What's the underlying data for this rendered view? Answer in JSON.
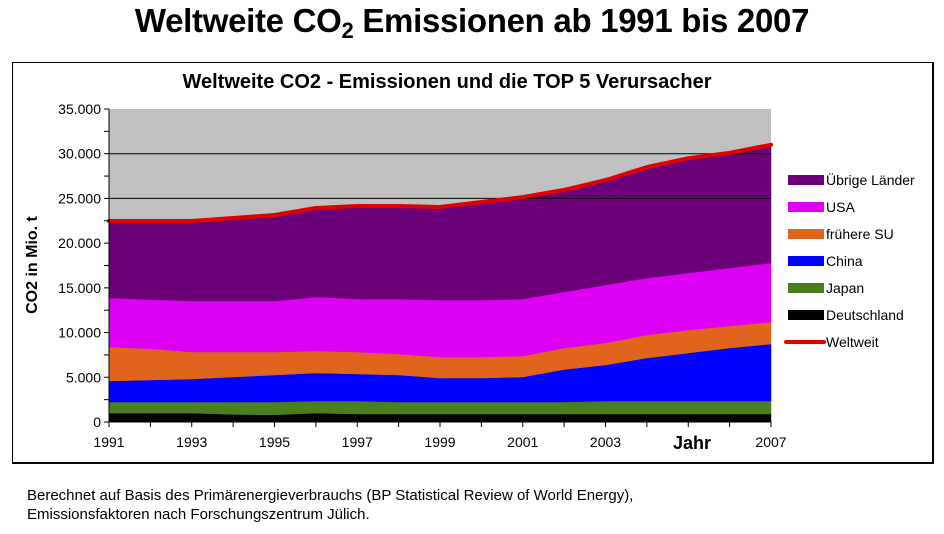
{
  "page": {
    "title_pre": "Weltweite CO",
    "title_sub": "2",
    "title_post": " Emissionen ab 1991 bis 2007",
    "footnote_line1": "Berechnet auf Basis des Primärenergieverbrauchs (BP Statistical Review of World Energy),",
    "footnote_line2": "Emissionsfaktoren nach Forschungszentrum Jülich."
  },
  "chart_data": {
    "type": "area",
    "stacked": true,
    "title": "Weltweite CO2 - Emissionen und die TOP 5 Verursacher",
    "xlabel": "Jahr",
    "ylabel": "CO2 in Mio. t",
    "x": [
      1991,
      1992,
      1993,
      1994,
      1995,
      1996,
      1997,
      1998,
      1999,
      2000,
      2001,
      2002,
      2003,
      2004,
      2005,
      2006,
      2007
    ],
    "x_tick_labels": [
      "1991",
      "1993",
      "1995",
      "1997",
      "1999",
      "2001",
      "2003",
      "2007"
    ],
    "ylim": [
      0,
      35000
    ],
    "y_tick_labels": [
      "0",
      "5.000",
      "10.000",
      "15.000",
      "20.000",
      "25.000",
      "30.000",
      "35.000"
    ],
    "y_ticks": [
      0,
      5000,
      10000,
      15000,
      20000,
      25000,
      30000,
      35000
    ],
    "grid": "horizontal major gridlines at 25.000 and 30.000 (above data)",
    "plot_background": "#c0c0c0",
    "legend_position": "right",
    "series": [
      {
        "name": "Deutschland",
        "color": "#000000",
        "values": [
          1000,
          1000,
          1000,
          850,
          800,
          1000,
          900,
          900,
          900,
          900,
          900,
          900,
          900,
          900,
          900,
          900,
          900
        ]
      },
      {
        "name": "Japan",
        "color": "#4a7f1f",
        "values": [
          1240,
          1240,
          1240,
          1390,
          1440,
          1350,
          1450,
          1340,
          1340,
          1340,
          1340,
          1340,
          1450,
          1450,
          1450,
          1450,
          1450
        ]
      },
      {
        "name": "China",
        "color": "#0000ff",
        "values": [
          2350,
          2460,
          2570,
          2790,
          3020,
          3130,
          3020,
          3020,
          2680,
          2680,
          2790,
          3630,
          4020,
          4810,
          5370,
          5920,
          6370
        ]
      },
      {
        "name": "frühere SU",
        "color": "#e0641c",
        "values": [
          3800,
          3500,
          3020,
          2800,
          2570,
          2460,
          2460,
          2340,
          2350,
          2350,
          2350,
          2400,
          2460,
          2570,
          2570,
          2460,
          2460
        ]
      },
      {
        "name": "USA",
        "color": "#dd00f5",
        "values": [
          5480,
          5500,
          5700,
          5700,
          5700,
          6040,
          5930,
          6150,
          6370,
          6370,
          6370,
          6270,
          6490,
          6370,
          6370,
          6490,
          6600
        ]
      },
      {
        "name": "Übrige Länder",
        "color": "#6b0078",
        "values": [
          8610,
          8780,
          8950,
          9280,
          9620,
          9950,
          10390,
          10400,
          10400,
          10960,
          11400,
          11410,
          11730,
          12400,
          12840,
          12880,
          13220
        ]
      }
    ],
    "line_series": [
      {
        "name": "Weltweit",
        "color": "#e00000",
        "values": [
          22480,
          22480,
          22480,
          22810,
          23150,
          23930,
          24150,
          24150,
          24040,
          24600,
          25150,
          25950,
          27050,
          28500,
          29500,
          30100,
          31000
        ]
      }
    ],
    "legend_order": [
      "Übrige Länder",
      "USA",
      "frühere SU",
      "China",
      "Japan",
      "Deutschland",
      "Weltweit"
    ]
  }
}
